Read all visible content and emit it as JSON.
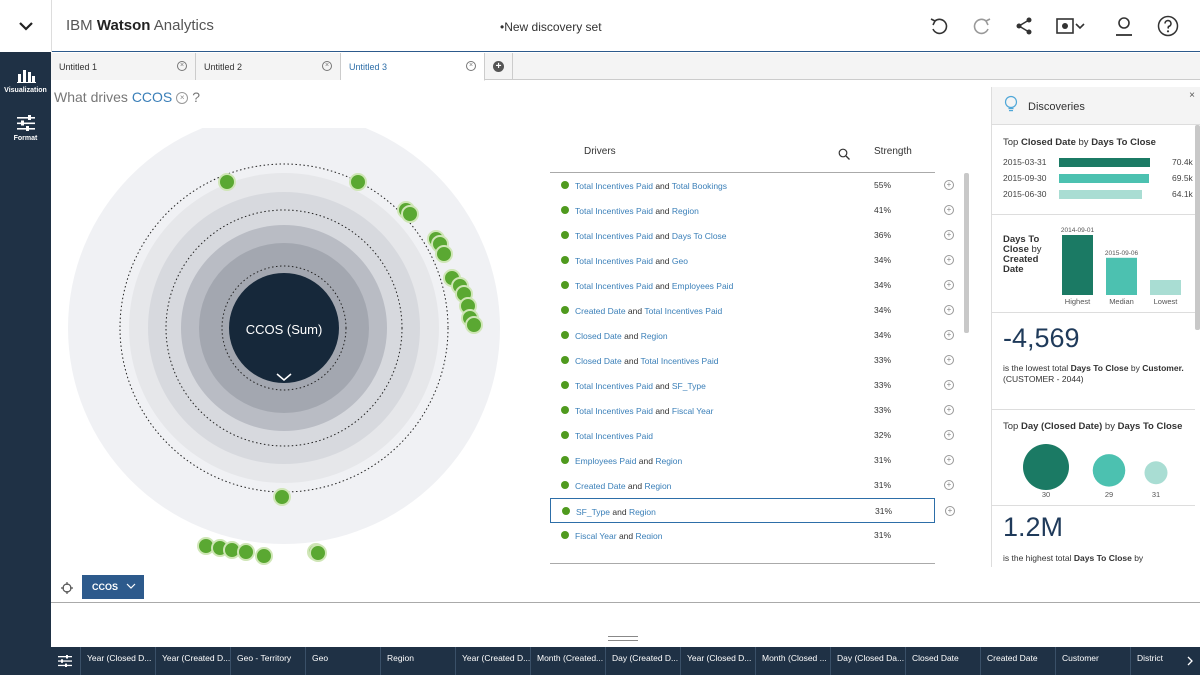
{
  "app": {
    "brand_light": "IBM ",
    "brand_bold": "Watson",
    "brand_rest": " Analytics"
  },
  "doc": {
    "title": "•New discovery set"
  },
  "rail": {
    "items": [
      {
        "label": "Visualization",
        "icon": "bar-chart-icon"
      },
      {
        "label": "Format",
        "icon": "sliders-icon"
      }
    ]
  },
  "tabs": [
    {
      "label": "Untitled 1",
      "active": false
    },
    {
      "label": "Untitled 2",
      "active": false
    },
    {
      "label": "Untitled 3",
      "active": true
    }
  ],
  "question": {
    "prefix": "What drives ",
    "target": "CCOS",
    "suffix": "?"
  },
  "viz": {
    "center_label": "CCOS (Sum)"
  },
  "drivers": {
    "header_drivers": "Drivers",
    "header_strength": "Strength",
    "rows": [
      {
        "a": "Total Incentives Paid",
        "join": " and ",
        "b": "Total Bookings",
        "pct": "55%"
      },
      {
        "a": "Total Incentives Paid",
        "join": " and ",
        "b": "Region",
        "pct": "41%"
      },
      {
        "a": "Total Incentives Paid",
        "join": " and ",
        "b": "Days To Close",
        "pct": "36%"
      },
      {
        "a": "Total Incentives Paid",
        "join": " and ",
        "b": "Geo",
        "pct": "34%"
      },
      {
        "a": "Total Incentives Paid",
        "join": " and ",
        "b": "Employees Paid",
        "pct": "34%"
      },
      {
        "a": "Created Date",
        "join": " and ",
        "b": "Total Incentives Paid",
        "pct": "34%"
      },
      {
        "a": "Closed Date",
        "join": " and ",
        "b": "Region",
        "pct": "34%"
      },
      {
        "a": "Closed Date",
        "join": " and ",
        "b": "Total Incentives Paid",
        "pct": "33%"
      },
      {
        "a": "Total Incentives Paid",
        "join": " and ",
        "b": "SF_Type",
        "pct": "33%"
      },
      {
        "a": "Total Incentives Paid",
        "join": " and ",
        "b": "Fiscal Year",
        "pct": "33%"
      },
      {
        "a": "Total Incentives Paid",
        "join": "",
        "b": "",
        "pct": "32%"
      },
      {
        "a": "Employees Paid",
        "join": " and ",
        "b": "Region",
        "pct": "31%"
      },
      {
        "a": "Created Date",
        "join": " and ",
        "b": "Region",
        "pct": "31%"
      },
      {
        "a": "SF_Type",
        "join": " and ",
        "b": "Region",
        "pct": "31%"
      },
      {
        "a": "Fiscal Year",
        "join": " and ",
        "b": "Region",
        "pct": "31%"
      }
    ]
  },
  "discoveries": {
    "title": "Discoveries",
    "close": "×",
    "card1": {
      "pre": "Top ",
      "m1": "Closed Date",
      "mid": " by ",
      "m2": "Days To Close",
      "rows": [
        {
          "date": "2015-03-31",
          "value": "70.4k",
          "fraction": 1.0,
          "color": "#1b7a64"
        },
        {
          "date": "2015-09-30",
          "value": "69.5k",
          "fraction": 0.987,
          "color": "#4cc1b0"
        },
        {
          "date": "2015-06-30",
          "value": "64.1k",
          "fraction": 0.91,
          "color": "#a9ddd3"
        }
      ]
    },
    "card2": {
      "title_bold": "Days To Close",
      "title_rest": " by ",
      "title_bold2": "Created Date",
      "bars": [
        {
          "label": "Highest",
          "date": "2014-09-01",
          "fraction": 1.0,
          "color": "#1b7a64"
        },
        {
          "label": "Median",
          "date": "2015-09-06",
          "fraction": 0.62,
          "color": "#4cc1b0"
        },
        {
          "label": "Lowest",
          "date": "",
          "fraction": 0.25,
          "color": "#a9ddd3"
        }
      ]
    },
    "card3": {
      "value": "-4,569",
      "c1": "is the lowest total ",
      "c2": "Days To Close",
      "c3": " by ",
      "c4": "Customer.",
      "c5": " (CUSTOMER - 2044)"
    },
    "card4": {
      "pre": "Top ",
      "m1": "Day (Closed Date)",
      "mid": " by ",
      "m2": "Days To Close",
      "bubbles": [
        {
          "label": "30",
          "fraction": 1.0,
          "color": "#1b7a64"
        },
        {
          "label": "29",
          "fraction": 0.5,
          "color": "#4cc1b0"
        },
        {
          "label": "31",
          "fraction": 0.25,
          "color": "#a9ddd3"
        }
      ]
    },
    "card5": {
      "value": "1.2M",
      "c1": "is the highest total ",
      "c2": "Days To Close",
      "c3": " by"
    }
  },
  "target_chip": {
    "label": "CCOS"
  },
  "columns": [
    "Year (Closed D...",
    "Year (Created D...",
    "Geo - Territory",
    "Geo",
    "Region",
    "Year (Created D...",
    "Month (Created...",
    "Day (Created D...",
    "Year (Closed D...",
    "Month (Closed ...",
    "Day (Closed Da...",
    "Closed Date",
    "Created Date",
    "Customer",
    "District"
  ],
  "colors": {
    "rail": "#1f3145",
    "accent": "#2d5a8c",
    "driver_dot": "#4f9a1e",
    "link": "#3a7fb8"
  }
}
